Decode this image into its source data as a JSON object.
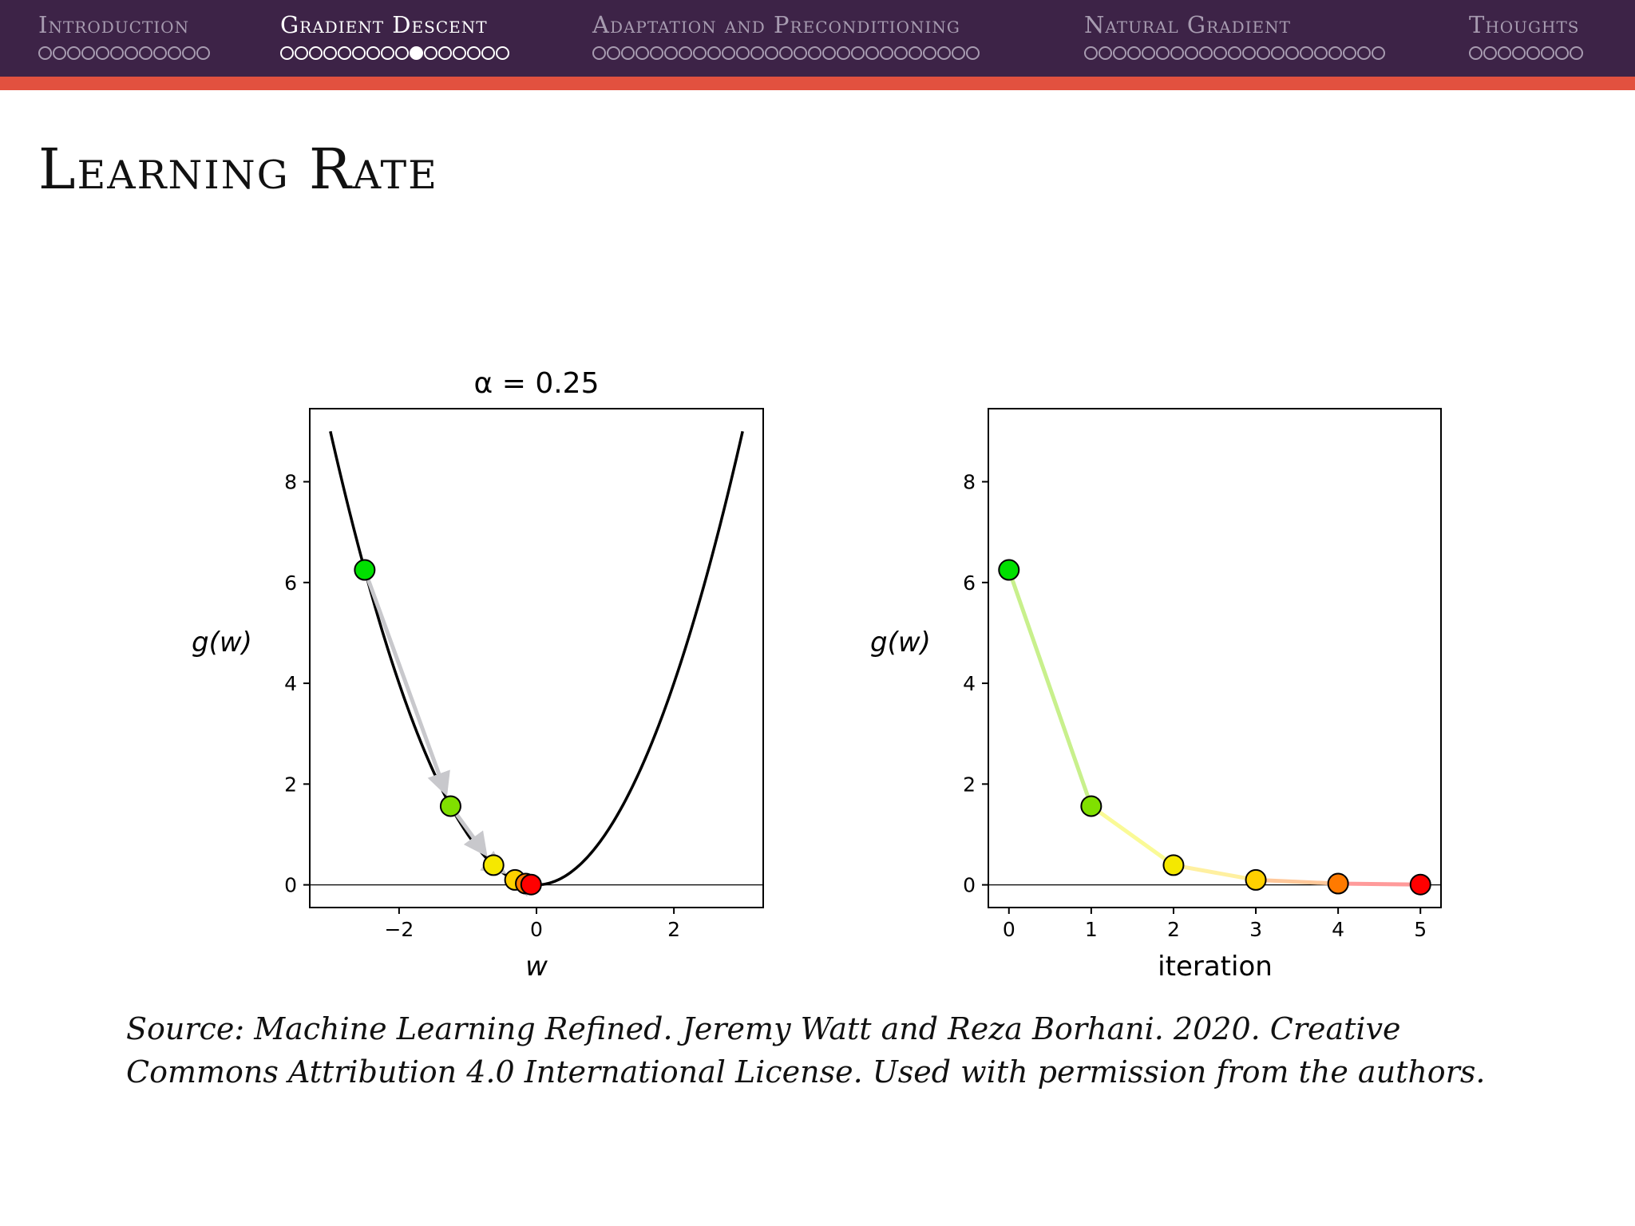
{
  "nav": {
    "sections": [
      {
        "label": "Introduction",
        "dots": 12,
        "current": -1,
        "active": false
      },
      {
        "label": "Gradient Descent",
        "dots": 16,
        "current": 9,
        "active": true
      },
      {
        "label": "Adaptation and Preconditioning",
        "dots": 27,
        "current": -1,
        "active": false
      },
      {
        "label": "Natural Gradient",
        "dots": 21,
        "current": -1,
        "active": false
      },
      {
        "label": "Thoughts",
        "dots": 8,
        "current": -1,
        "active": false
      }
    ],
    "colors": {
      "background": "#3d2347",
      "accent": "#e2513f"
    }
  },
  "slide": {
    "title": "Learning Rate",
    "caption": "Source: Machine Learning Refined. Jeremy Watt and Reza Borhani. 2020. Creative Commons Attribution 4.0 International License. Used with permission from the authors."
  },
  "chart_data": [
    {
      "type": "line",
      "title": "α = 0.25",
      "xlabel": "w",
      "ylabel": "g(w)",
      "xlim": [
        -3.3,
        3.3
      ],
      "ylim": [
        -0.45,
        9.45
      ],
      "xticks": [
        -2,
        0,
        2
      ],
      "xtick_labels": [
        "−2",
        "0",
        "2"
      ],
      "yticks": [
        0,
        2,
        4,
        6,
        8
      ],
      "yticks_labels": [
        "0",
        "2",
        "4",
        "6",
        "8"
      ],
      "curve": {
        "function": "w^2",
        "x_range": [
          -3,
          3
        ],
        "color": "#000000"
      },
      "baseline": 0,
      "points": [
        {
          "x": -2.5,
          "y": 6.25,
          "color": "#00e000"
        },
        {
          "x": -1.25,
          "y": 1.5625,
          "color": "#80e000"
        },
        {
          "x": -0.625,
          "y": 0.390625,
          "color": "#f5e800"
        },
        {
          "x": -0.3125,
          "y": 0.09765625,
          "color": "#ffd000"
        },
        {
          "x": -0.15625,
          "y": 0.0244140625,
          "color": "#ff7a00"
        },
        {
          "x": -0.078125,
          "y": 0.006103515625,
          "color": "#ff0000"
        }
      ],
      "arrow_color": "#c8c8cc"
    },
    {
      "type": "line",
      "title": "",
      "xlabel": "iteration",
      "ylabel": "g(w)",
      "xlim": [
        -0.25,
        5.25
      ],
      "ylim": [
        -0.45,
        9.45
      ],
      "xticks": [
        0,
        1,
        2,
        3,
        4,
        5
      ],
      "xtick_labels": [
        "0",
        "1",
        "2",
        "3",
        "4",
        "5"
      ],
      "yticks": [
        0,
        2,
        4,
        6,
        8
      ],
      "yticks_labels": [
        "0",
        "2",
        "4",
        "6",
        "8"
      ],
      "baseline": 0,
      "x": [
        0,
        1,
        2,
        3,
        4,
        5
      ],
      "series": [
        {
          "values": [
            6.25,
            1.5625,
            0.390625,
            0.09765625,
            0.0244140625,
            0.006103515625
          ],
          "point_colors": [
            "#00e000",
            "#80e000",
            "#f5e800",
            "#ffd000",
            "#ff7a00",
            "#ff0000"
          ],
          "segment_colors": [
            "#c8f08c",
            "#fafa96",
            "#fff0a0",
            "#ffc89a",
            "#ff9a9a"
          ]
        }
      ]
    }
  ]
}
